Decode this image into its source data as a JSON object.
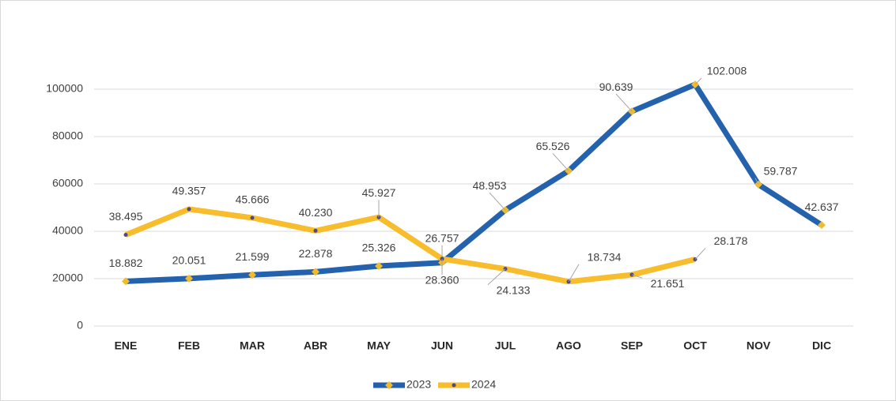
{
  "chart_data": {
    "type": "line",
    "categories": [
      "ENE",
      "FEB",
      "MAR",
      "ABR",
      "MAY",
      "JUN",
      "JUL",
      "AGO",
      "SEP",
      "OCT",
      "NOV",
      "DIC"
    ],
    "series": [
      {
        "name": "2023",
        "color": "#2462ae",
        "marker_color": "#f2bb2c",
        "values": [
          18882,
          20051,
          21599,
          22878,
          25326,
          26757,
          48953,
          65526,
          90639,
          102008,
          59787,
          42637
        ],
        "value_labels": [
          "18.882",
          "20.051",
          "21.599",
          "22.878",
          "25.326",
          "26.757",
          "48.953",
          "65.526",
          "90.639",
          "102.008",
          "59.787",
          "42.637"
        ]
      },
      {
        "name": "2024",
        "color": "#f7bd2d",
        "marker_color": "#4e4a86",
        "values": [
          38495,
          49357,
          45666,
          40230,
          45927,
          28360,
          24133,
          18734,
          21651,
          28178,
          null,
          null
        ],
        "value_labels": [
          "38.495",
          "49.357",
          "45.666",
          "40.230",
          "45.927",
          "28.360",
          "24.133",
          "18.734",
          "21.651",
          "28.178",
          null,
          null
        ]
      }
    ],
    "ylim": [
      0,
      110000
    ],
    "yticks": [
      0,
      20000,
      40000,
      60000,
      80000,
      100000
    ],
    "grid": true,
    "legend": "bottom"
  }
}
